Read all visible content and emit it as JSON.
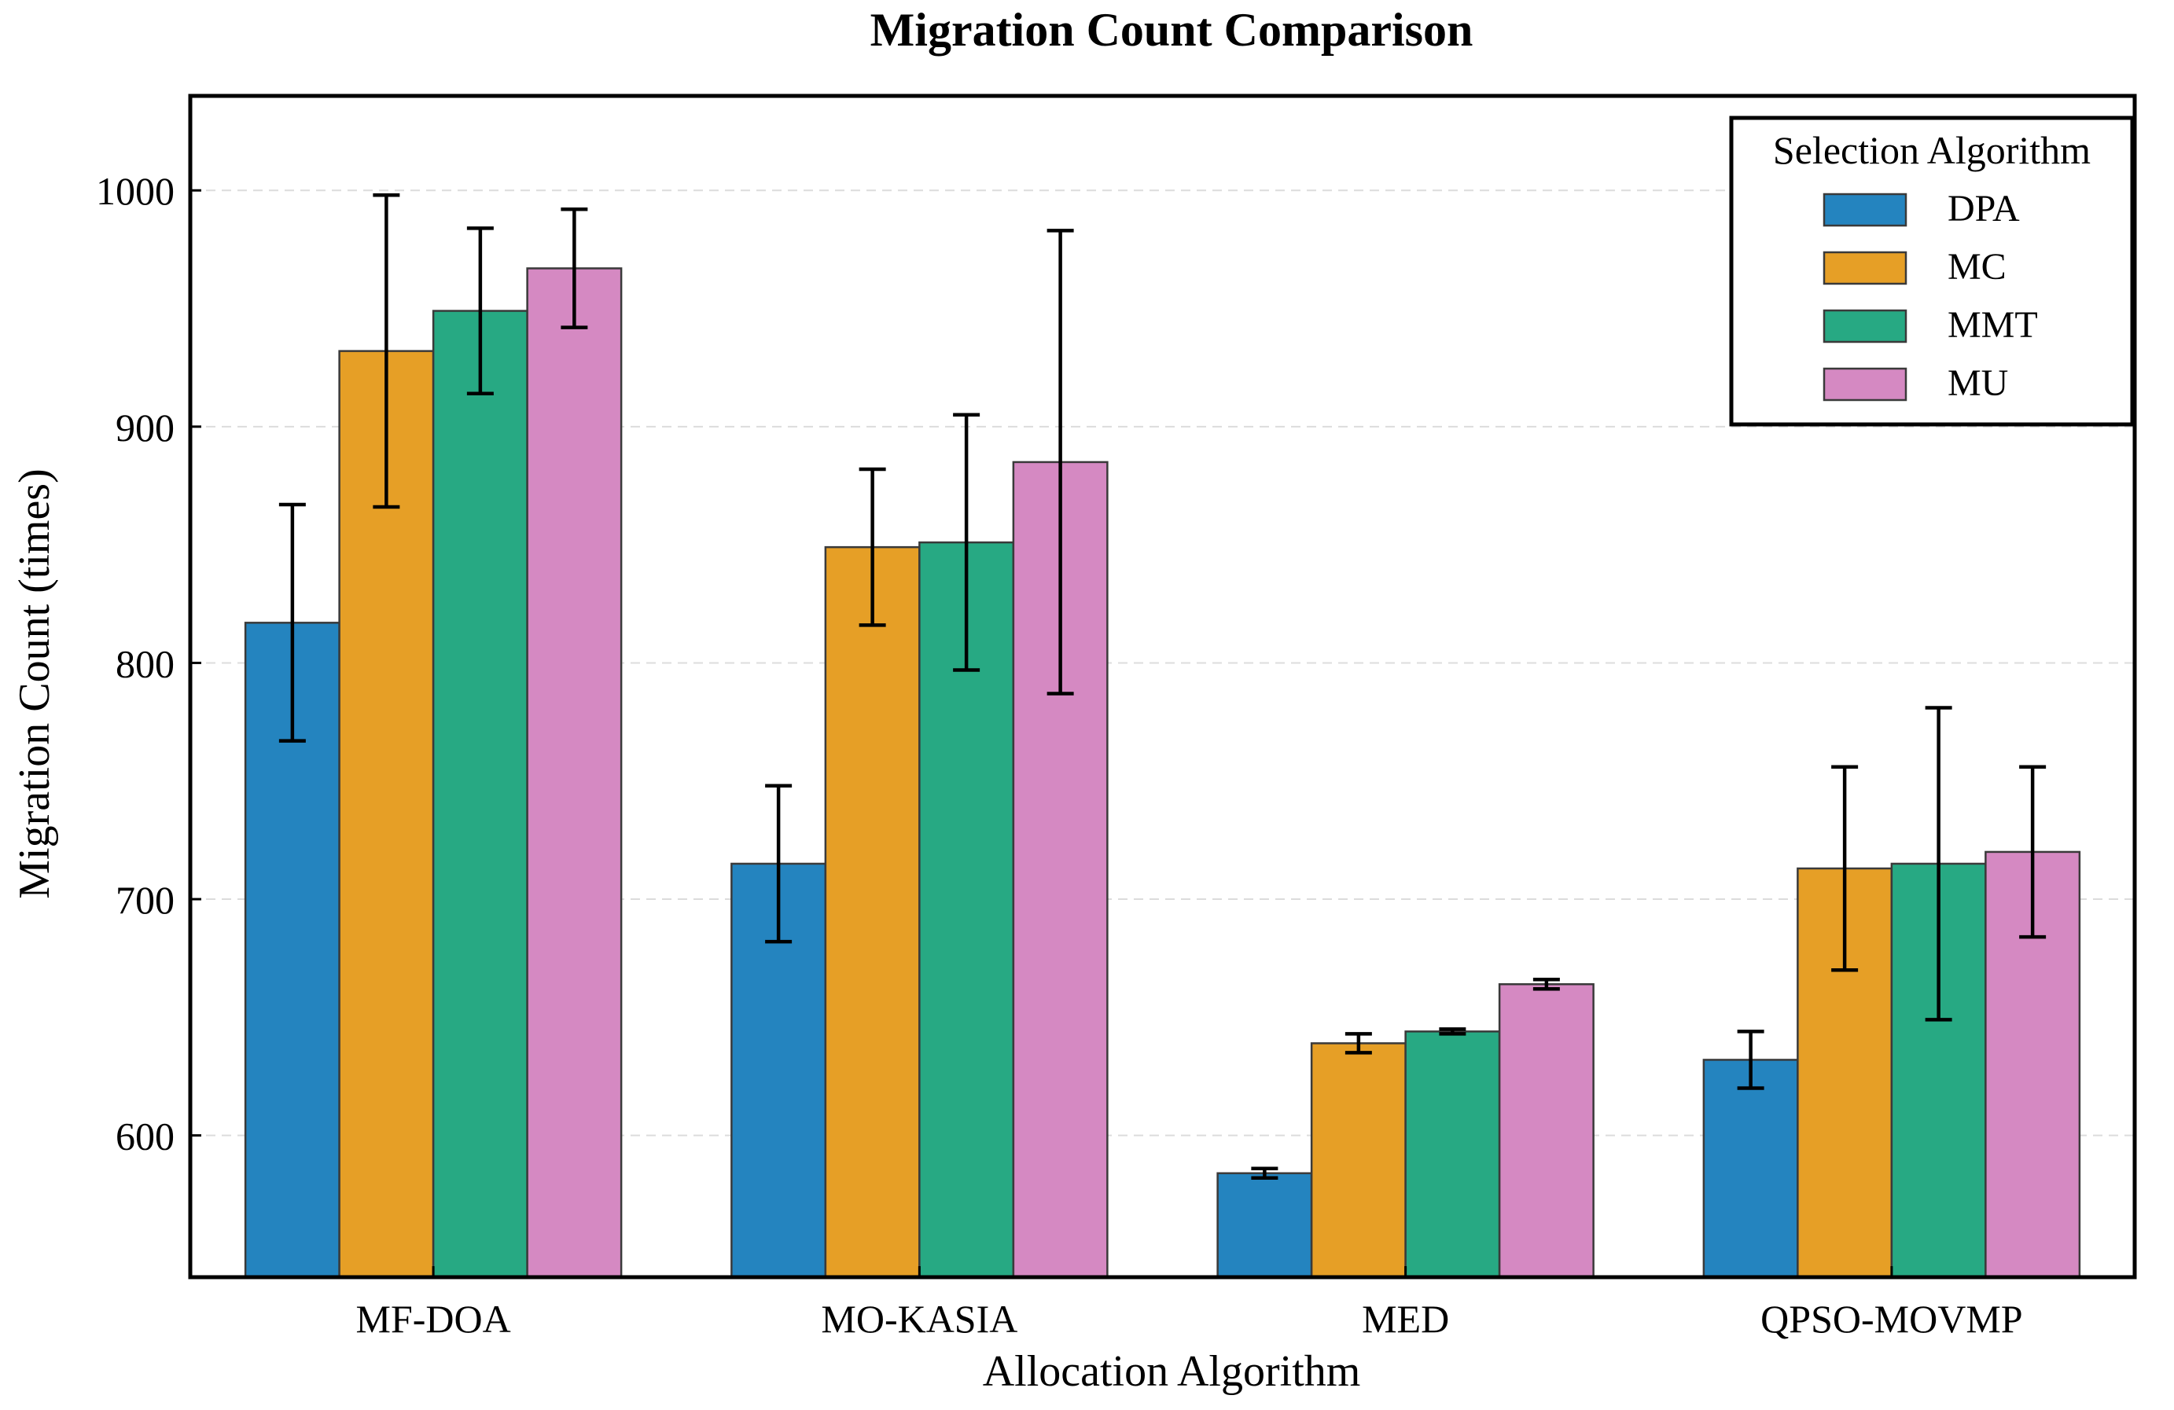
{
  "chart_data": {
    "type": "bar",
    "title": "Migration Count Comparison",
    "xlabel": "Allocation Algorithm",
    "ylabel": "Migration Count (times)",
    "ylim": [
      540,
      1040
    ],
    "yticks": [
      600,
      700,
      800,
      900,
      1000
    ],
    "grid": true,
    "categories": [
      "MF-DOA",
      "MO-KASIA",
      "MED",
      "QPSO-MOVMP"
    ],
    "legend": {
      "title": "Selection Algorithm",
      "position": "top-right"
    },
    "series": [
      {
        "name": "DPA",
        "color": "#2484bf",
        "values": [
          817,
          715,
          584,
          632
        ],
        "errors": [
          50,
          33,
          2,
          12
        ]
      },
      {
        "name": "MC",
        "color": "#e69f26",
        "values": [
          932,
          849,
          639,
          713
        ],
        "errors": [
          66,
          33,
          4,
          43
        ]
      },
      {
        "name": "MMT",
        "color": "#27a983",
        "values": [
          949,
          851,
          644,
          715
        ],
        "errors": [
          35,
          54,
          1,
          66
        ]
      },
      {
        "name": "MU",
        "color": "#d589c2",
        "values": [
          967,
          885,
          664,
          720
        ],
        "errors": [
          25,
          98,
          2,
          36
        ]
      }
    ]
  }
}
